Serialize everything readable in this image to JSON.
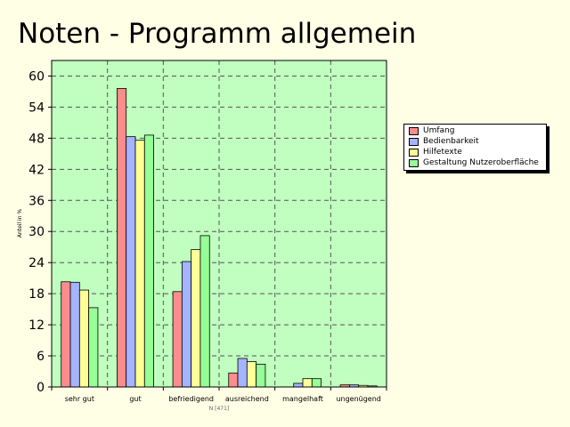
{
  "page": {
    "title": "Noten - Programm allgemein"
  },
  "chart_data": {
    "type": "bar",
    "title": "Noten - Programm allgemein",
    "xlabel": "N [471]",
    "ylabel": "Anteil in %",
    "ylim": [
      0,
      63
    ],
    "yticks": [
      0,
      6,
      12,
      18,
      24,
      30,
      36,
      42,
      48,
      54,
      60
    ],
    "grid": true,
    "legend_position": "right",
    "categories": [
      "sehr gut",
      "gut",
      "befriedigend",
      "ausreichend",
      "mangelhaft",
      "ungenügend"
    ],
    "series": [
      {
        "name": "Umfang",
        "color": "#ff8c8c",
        "values": [
          20.3,
          57.6,
          18.4,
          2.7,
          0,
          0.4
        ]
      },
      {
        "name": "Bedienbarkeit",
        "color": "#a5b4ff",
        "values": [
          20.2,
          48.3,
          24.2,
          5.5,
          0.7,
          0.4
        ]
      },
      {
        "name": "Hilfetexte",
        "color": "#ffff96",
        "values": [
          18.7,
          47.6,
          26.5,
          4.9,
          1.6,
          0.3
        ]
      },
      {
        "name": "Gestaltung Nutzeroberfläche",
        "color": "#96ff96",
        "values": [
          15.3,
          48.6,
          29.2,
          4.4,
          1.6,
          0.2
        ]
      }
    ]
  }
}
